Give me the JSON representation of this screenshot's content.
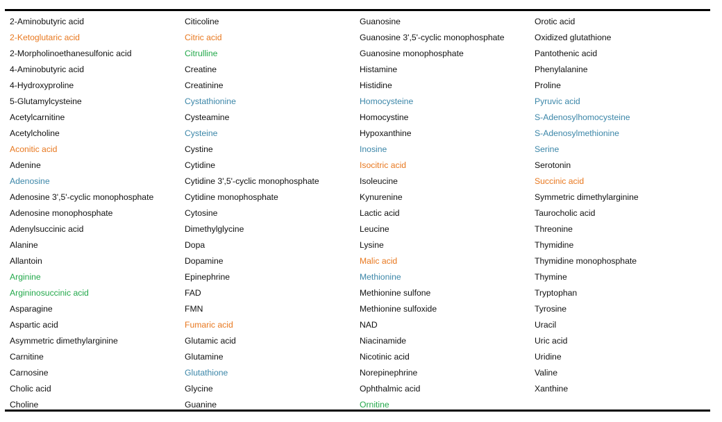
{
  "colors": {
    "black": "#111111",
    "orange": "#E8781F",
    "green": "#22A84A",
    "blue": "#3B86A8"
  },
  "rows": [
    [
      {
        "t": "2-Aminobutyric acid",
        "c": "black"
      },
      {
        "t": "Citicoline",
        "c": "black"
      },
      {
        "t": "Guanosine",
        "c": "black"
      },
      {
        "t": "Orotic acid",
        "c": "black"
      }
    ],
    [
      {
        "t": "2-Ketoglutaric acid",
        "c": "orange"
      },
      {
        "t": "Citric acid",
        "c": "orange"
      },
      {
        "t": "Guanosine 3',5'-cyclic monophosphate",
        "c": "black"
      },
      {
        "t": "Oxidized glutathione",
        "c": "black"
      }
    ],
    [
      {
        "t": "2-Morpholinoethanesulfonic acid",
        "c": "black"
      },
      {
        "t": "Citrulline",
        "c": "green"
      },
      {
        "t": "Guanosine monophosphate",
        "c": "black"
      },
      {
        "t": "Pantothenic acid",
        "c": "black"
      }
    ],
    [
      {
        "t": "4-Aminobutyric acid",
        "c": "black"
      },
      {
        "t": "Creatine",
        "c": "black"
      },
      {
        "t": "Histamine",
        "c": "black"
      },
      {
        "t": "Phenylalanine",
        "c": "black"
      }
    ],
    [
      {
        "t": "4-Hydroxyproline",
        "c": "black"
      },
      {
        "t": "Creatinine",
        "c": "black"
      },
      {
        "t": "Histidine",
        "c": "black"
      },
      {
        "t": "Proline",
        "c": "black"
      }
    ],
    [
      {
        "t": "5-Glutamylcysteine",
        "c": "black"
      },
      {
        "t": "Cystathionine",
        "c": "blue"
      },
      {
        "t": "Homocysteine",
        "c": "blue"
      },
      {
        "t": "Pyruvic acid",
        "c": "blue"
      }
    ],
    [
      {
        "t": "Acetylcarnitine",
        "c": "black"
      },
      {
        "t": "Cysteamine",
        "c": "black"
      },
      {
        "t": "Homocystine",
        "c": "black"
      },
      {
        "t": "S-Adenosylhomocysteine",
        "c": "blue"
      }
    ],
    [
      {
        "t": "Acetylcholine",
        "c": "black"
      },
      {
        "t": "Cysteine",
        "c": "blue"
      },
      {
        "t": "Hypoxanthine",
        "c": "black"
      },
      {
        "t": "S-Adenosylmethionine",
        "c": "blue"
      }
    ],
    [
      {
        "t": "Aconitic acid",
        "c": "orange"
      },
      {
        "t": "Cystine",
        "c": "black"
      },
      {
        "t": "Inosine",
        "c": "blue"
      },
      {
        "t": "Serine",
        "c": "blue"
      }
    ],
    [
      {
        "t": "Adenine",
        "c": "black"
      },
      {
        "t": "Cytidine",
        "c": "black"
      },
      {
        "t": "Isocitric acid",
        "c": "orange"
      },
      {
        "t": "Serotonin",
        "c": "black"
      }
    ],
    [
      {
        "t": "Adenosine",
        "c": "blue"
      },
      {
        "t": "Cytidine 3',5'-cyclic monophosphate",
        "c": "black"
      },
      {
        "t": "Isoleucine",
        "c": "black"
      },
      {
        "t": "Succinic acid",
        "c": "orange"
      }
    ],
    [
      {
        "t": "Adenosine 3',5'-cyclic monophosphate",
        "c": "black"
      },
      {
        "t": "Cytidine monophosphate",
        "c": "black"
      },
      {
        "t": "Kynurenine",
        "c": "black"
      },
      {
        "t": "Symmetric dimethylarginine",
        "c": "black"
      }
    ],
    [
      {
        "t": "Adenosine monophosphate",
        "c": "black"
      },
      {
        "t": "Cytosine",
        "c": "black"
      },
      {
        "t": "Lactic acid",
        "c": "black"
      },
      {
        "t": "Taurocholic acid",
        "c": "black"
      }
    ],
    [
      {
        "t": "Adenylsuccinic acid",
        "c": "black"
      },
      {
        "t": "Dimethylglycine",
        "c": "black"
      },
      {
        "t": "Leucine",
        "c": "black"
      },
      {
        "t": "Threonine",
        "c": "black"
      }
    ],
    [
      {
        "t": "Alanine",
        "c": "black"
      },
      {
        "t": "Dopa",
        "c": "black"
      },
      {
        "t": "Lysine",
        "c": "black"
      },
      {
        "t": "Thymidine",
        "c": "black"
      }
    ],
    [
      {
        "t": "Allantoin",
        "c": "black"
      },
      {
        "t": "Dopamine",
        "c": "black"
      },
      {
        "t": "Malic acid",
        "c": "orange"
      },
      {
        "t": "Thymidine monophosphate",
        "c": "black"
      }
    ],
    [
      {
        "t": "Arginine",
        "c": "green"
      },
      {
        "t": "Epinephrine",
        "c": "black"
      },
      {
        "t": "Methionine",
        "c": "blue"
      },
      {
        "t": "Thymine",
        "c": "black"
      }
    ],
    [
      {
        "t": "Argininosuccinic acid",
        "c": "green"
      },
      {
        "t": "FAD",
        "c": "black"
      },
      {
        "t": "Methionine sulfone",
        "c": "black"
      },
      {
        "t": "Tryptophan",
        "c": "black"
      }
    ],
    [
      {
        "t": "Asparagine",
        "c": "black"
      },
      {
        "t": "FMN",
        "c": "black"
      },
      {
        "t": "Methionine sulfoxide",
        "c": "black"
      },
      {
        "t": "Tyrosine",
        "c": "black"
      }
    ],
    [
      {
        "t": "Aspartic acid",
        "c": "black"
      },
      {
        "t": "Fumaric acid",
        "c": "orange"
      },
      {
        "t": "NAD",
        "c": "black"
      },
      {
        "t": "Uracil",
        "c": "black"
      }
    ],
    [
      {
        "t": "Asymmetric dimethylarginine",
        "c": "black"
      },
      {
        "t": "Glutamic acid",
        "c": "black"
      },
      {
        "t": "Niacinamide",
        "c": "black"
      },
      {
        "t": "Uric acid",
        "c": "black"
      }
    ],
    [
      {
        "t": "Carnitine",
        "c": "black"
      },
      {
        "t": "Glutamine",
        "c": "black"
      },
      {
        "t": "Nicotinic acid",
        "c": "black"
      },
      {
        "t": "Uridine",
        "c": "black"
      }
    ],
    [
      {
        "t": "Carnosine",
        "c": "black"
      },
      {
        "t": "Glutathione",
        "c": "blue"
      },
      {
        "t": "Norepinephrine",
        "c": "black"
      },
      {
        "t": "Valine",
        "c": "black"
      }
    ],
    [
      {
        "t": "Cholic acid",
        "c": "black"
      },
      {
        "t": "Glycine",
        "c": "black"
      },
      {
        "t": "Ophthalmic acid",
        "c": "black"
      },
      {
        "t": "Xanthine",
        "c": "black"
      }
    ],
    [
      {
        "t": "Choline",
        "c": "black"
      },
      {
        "t": "Guanine",
        "c": "black"
      },
      {
        "t": "Ornitine",
        "c": "green"
      },
      {
        "t": "",
        "c": "black"
      }
    ]
  ]
}
